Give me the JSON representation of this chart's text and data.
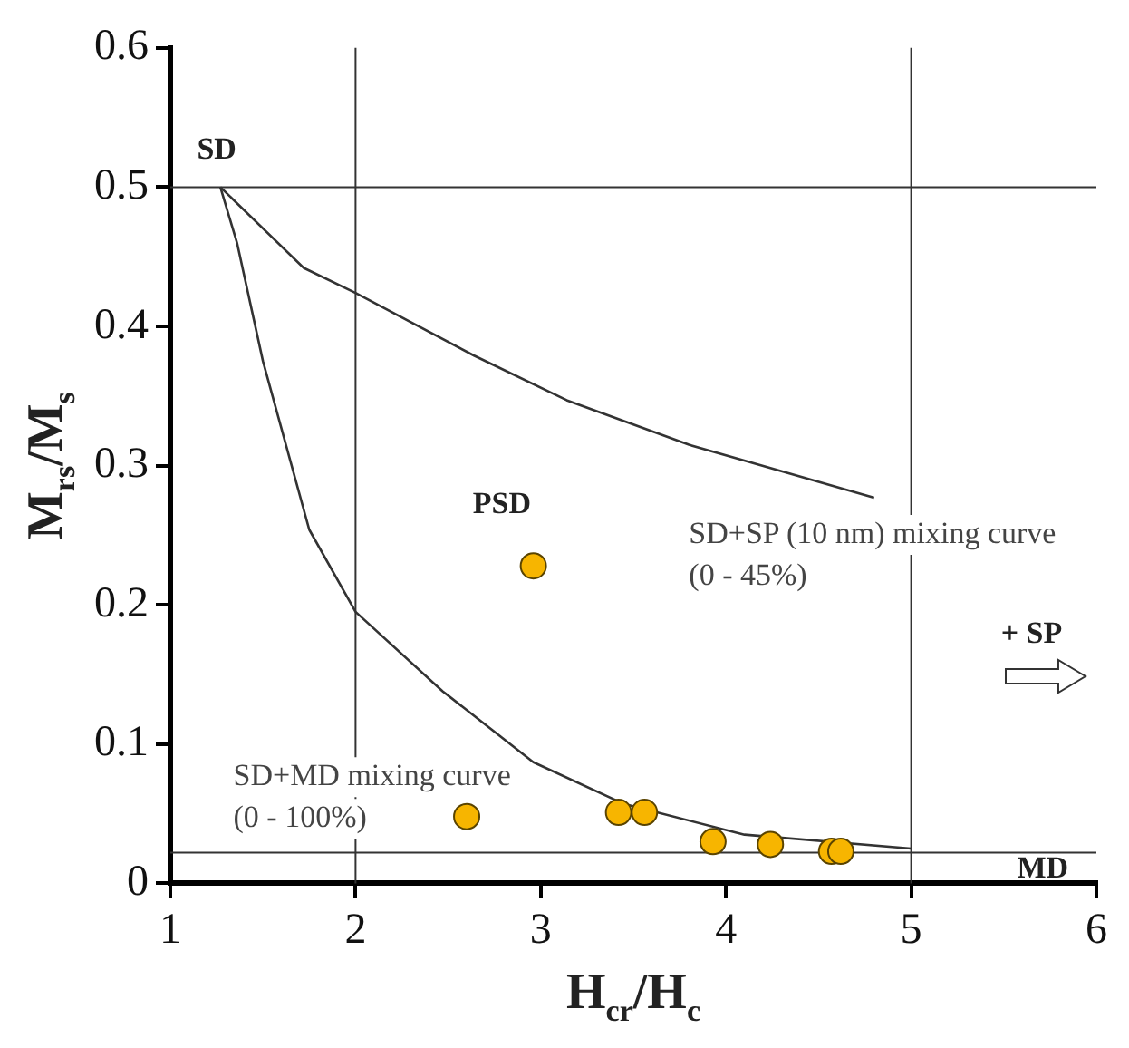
{
  "chart_data": {
    "type": "scatter",
    "xlabel": "H$_{cr}$/H$_{c}$",
    "ylabel": "M$_{rs}$/M$_{s}$",
    "xlim": [
      1,
      6
    ],
    "xticks": [
      1,
      2,
      3,
      4,
      5,
      6
    ],
    "ylim": [
      0,
      0.6
    ],
    "yticks": [
      0,
      0.1,
      0.2,
      0.3,
      0.4,
      0.5,
      0.6
    ],
    "grid": false,
    "legend": false,
    "marker": "circle",
    "series": [
      {
        "color": "#f7b500",
        "x": [
          2.6,
          2.96,
          3.42,
          3.56,
          3.93,
          4.24,
          4.57,
          4.62
        ],
        "values": [
          0.048,
          0.228,
          0.051,
          0.051,
          0.03,
          0.028,
          0.023,
          0.023
        ]
      },
      {
        "type": "line",
        "color": "#333333",
        "marker": "none",
        "x": [
          1.27,
          1.36,
          1.5,
          1.75,
          2,
          2.47,
          2.96,
          3.45,
          4.1,
          5
        ],
        "values": [
          0.5,
          0.46,
          0.375,
          0.254,
          0.195,
          0.138,
          0.087,
          0.057,
          0.035,
          0.025
        ]
      },
      {
        "type": "line",
        "color": "#333333",
        "marker": "none",
        "x": [
          1.27,
          1.72,
          2,
          2.64,
          3.14,
          3.8,
          4.8
        ],
        "values": [
          0.5,
          0.442,
          0.424,
          0.379,
          0.347,
          0.315,
          0.277
        ]
      }
    ],
    "ref_lines": [
      {
        "axis": "y",
        "value": 0.5,
        "color": "#333333"
      },
      {
        "axis": "y",
        "value": 0.022,
        "color": "#333333"
      },
      {
        "axis": "x",
        "value": 2,
        "color": "#333333"
      },
      {
        "axis": "x",
        "value": 5,
        "color": "#333333"
      }
    ],
    "annotations": [
      "SD",
      "PSD",
      "MD",
      "+ SP",
      "SD+SP (10 nm) mixing curve\n(0 - 45%)",
      "SD+MD mixing curve\n(0 - 100%)"
    ]
  }
}
